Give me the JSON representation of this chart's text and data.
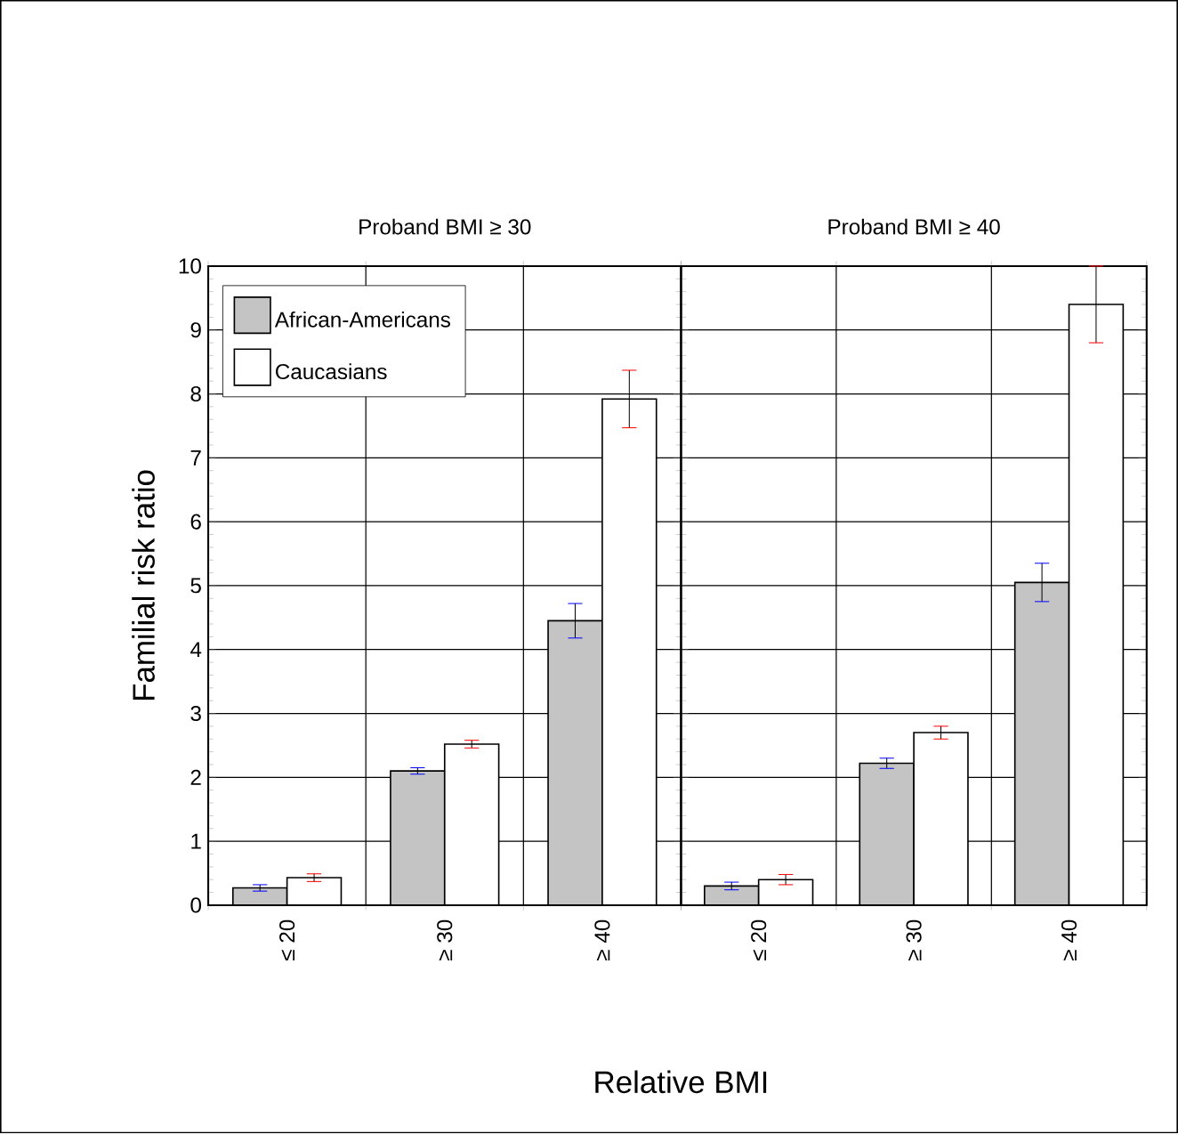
{
  "chart_data": [
    {
      "type": "bar",
      "title": "Proband BMI ≥ 30",
      "xlabel": "Relative BMI",
      "ylabel": "Familial risk ratio",
      "categories": [
        "≤ 20",
        "≥ 30",
        "≥ 40"
      ],
      "series": [
        {
          "name": "African-Americans",
          "color": "#c4c4c4",
          "values": [
            0.27,
            2.1,
            4.45
          ],
          "errors": [
            0.05,
            0.05,
            0.27
          ]
        },
        {
          "name": "Caucasians",
          "color": "#ffffff",
          "values": [
            0.43,
            2.52,
            7.92
          ],
          "errors": [
            0.06,
            0.06,
            0.45
          ]
        }
      ],
      "ylim": [
        0,
        10
      ],
      "yticks": [
        0,
        1,
        2,
        3,
        4,
        5,
        6,
        7,
        8,
        9,
        10
      ],
      "grid": true,
      "legend": "top left"
    },
    {
      "type": "bar",
      "title": "Proband BMI ≥ 40",
      "categories": [
        "≤ 20",
        "≥ 30",
        "≥ 40"
      ],
      "series": [
        {
          "color": "#c4c4c4",
          "values": [
            0.3,
            2.22,
            5.05
          ],
          "errors": [
            0.06,
            0.08,
            0.3
          ]
        },
        {
          "color": "#ffffff",
          "values": [
            0.4,
            2.7,
            9.4
          ],
          "errors": [
            0.08,
            0.1,
            0.6
          ]
        }
      ],
      "ylim": [
        0,
        10
      ],
      "yticks": [
        0,
        1,
        2,
        3,
        4,
        5,
        6,
        7,
        8,
        9,
        10
      ],
      "grid": true,
      "tick_labels": "x"
    }
  ]
}
